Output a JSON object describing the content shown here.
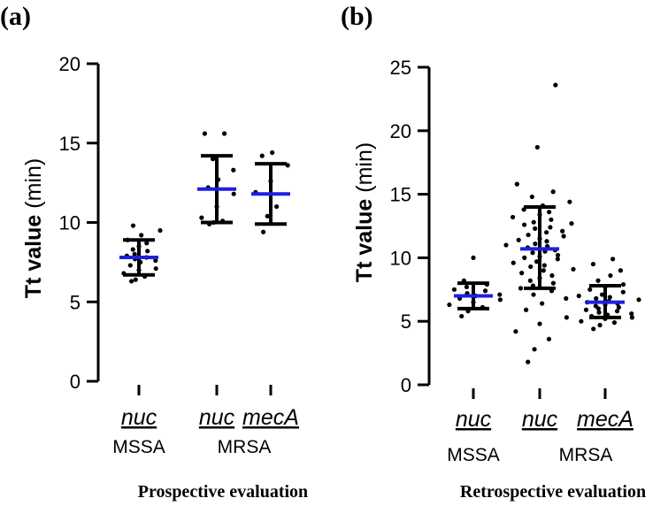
{
  "chart_data": [
    {
      "type": "scatter",
      "panel_label": "(a)",
      "caption": "Prospective evaluation",
      "ylabel_bold": "Tt value",
      "ylabel_unit": "(min)",
      "ylim": [
        0,
        20
      ],
      "yticks": [
        "0",
        "5",
        "10",
        "15",
        "20"
      ],
      "ytick_values": [
        0,
        5,
        10,
        15,
        20
      ],
      "groups": [
        {
          "gene": "nuc",
          "mean": 7.8,
          "sd_low": 6.7,
          "sd_high": 8.9,
          "points": [
            6.3,
            6.4,
            6.6,
            6.8,
            7.0,
            7.1,
            7.3,
            7.5,
            7.6,
            7.7,
            7.8,
            7.9,
            8.0,
            8.2,
            8.3,
            8.5,
            8.7,
            8.9,
            9.2,
            9.5,
            9.8
          ]
        },
        {
          "gene": "nuc",
          "mean": 12.1,
          "sd_low": 10.0,
          "sd_high": 14.2,
          "points": [
            9.9,
            10.0,
            10.1,
            10.3,
            11.0,
            11.8,
            12.2,
            12.7,
            13.3,
            14.0,
            15.6,
            15.6
          ]
        },
        {
          "gene": "mecA",
          "mean": 11.8,
          "sd_low": 9.9,
          "sd_high": 13.7,
          "points": [
            9.4,
            10.4,
            11.0,
            11.9,
            12.6,
            13.6,
            14.2,
            14.4
          ]
        }
      ],
      "group_labels": [
        {
          "text": "MSSA"
        },
        {
          "text": "MRSA"
        }
      ]
    },
    {
      "type": "scatter",
      "panel_label": "(b)",
      "caption": "Retrospective evaluation",
      "ylabel_bold": "Tt  value",
      "ylabel_unit": "(min)",
      "ylim": [
        0,
        25
      ],
      "yticks": [
        "0",
        "5",
        "10",
        "15",
        "20",
        "25"
      ],
      "ytick_values": [
        0,
        5,
        10,
        15,
        20,
        25
      ],
      "groups": [
        {
          "gene": "nuc",
          "mean": 7.0,
          "sd_low": 6.0,
          "sd_high": 8.0,
          "points": [
            5.4,
            5.8,
            6.1,
            6.3,
            6.5,
            6.7,
            6.8,
            7.0,
            7.1,
            7.2,
            7.4,
            7.5,
            7.7,
            7.9,
            8.2,
            10.0
          ]
        },
        {
          "gene": "nuc",
          "mean": 10.7,
          "sd_low": 7.6,
          "sd_high": 14.0,
          "points": [
            1.8,
            2.8,
            3.6,
            4.2,
            4.8,
            5.3,
            5.9,
            6.4,
            6.8,
            7.1,
            7.4,
            7.6,
            7.8,
            8.0,
            8.2,
            8.4,
            8.6,
            8.8,
            9.0,
            9.1,
            9.3,
            9.4,
            9.6,
            9.7,
            9.9,
            10.0,
            10.1,
            10.2,
            10.4,
            10.5,
            10.6,
            10.8,
            10.9,
            11.0,
            11.1,
            11.3,
            11.4,
            11.5,
            11.7,
            11.8,
            12.0,
            12.1,
            12.3,
            12.4,
            12.6,
            12.8,
            13.0,
            13.2,
            13.4,
            13.6,
            13.8,
            14.1,
            14.4,
            14.8,
            15.2,
            15.8,
            18.7,
            23.6
          ]
        },
        {
          "gene": "mecA",
          "mean": 6.5,
          "sd_low": 5.3,
          "sd_high": 7.8,
          "points": [
            4.4,
            4.7,
            4.9,
            5.0,
            5.2,
            5.3,
            5.4,
            5.5,
            5.6,
            5.7,
            5.8,
            5.9,
            6.0,
            6.1,
            6.2,
            6.3,
            6.4,
            6.5,
            6.6,
            6.7,
            6.8,
            6.9,
            7.0,
            7.1,
            7.3,
            7.5,
            7.7,
            7.9,
            8.2,
            8.6,
            9.0,
            9.5,
            9.9,
            12.7
          ]
        }
      ],
      "group_labels": [
        {
          "text": "MSSA"
        },
        {
          "text": "MRSA"
        }
      ]
    }
  ],
  "colors": {
    "mean_line": "#1f1fe0",
    "error_bar": "#000000",
    "points": "#000000"
  }
}
